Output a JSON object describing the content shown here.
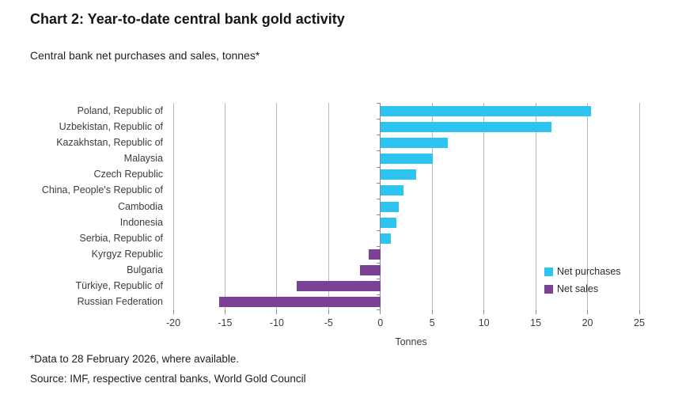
{
  "header": {
    "title": "Chart 2: Year-to-date central bank gold activity",
    "subtitle": "Central bank net purchases and sales, tonnes*"
  },
  "chart_data": {
    "type": "bar",
    "orientation": "horizontal",
    "title": "Chart 2: Year-to-date central bank gold activity",
    "subtitle": "Central bank net purchases and sales, tonnes*",
    "categories": [
      "Poland, Republic of",
      "Uzbekistan, Republic of",
      "Kazakhstan, Republic of",
      "Malaysia",
      "Czech Republic",
      "China, People's Republic of",
      "Cambodia",
      "Indonesia",
      "Serbia, Republic of",
      "Kyrgyz Republic",
      "Bulgaria",
      "Türkiye, Republic of",
      "Russian Federation"
    ],
    "values": [
      20.3,
      16.5,
      6.5,
      5.0,
      3.4,
      2.2,
      1.7,
      1.5,
      1.0,
      -1.1,
      -2.0,
      -8.1,
      -15.6
    ],
    "xlabel": "Tonnes",
    "ylabel": "",
    "xlim": [
      -20,
      25
    ],
    "xticks": [
      -20,
      -15,
      -10,
      -5,
      0,
      5,
      10,
      15,
      20,
      25
    ],
    "grid": true,
    "legend": {
      "position": "inside-right",
      "entries": [
        {
          "label": "Net purchases",
          "color": "#2EC4F1",
          "applies_to": "positive values"
        },
        {
          "label": "Net sales",
          "color": "#7A4195",
          "applies_to": "negative values"
        }
      ]
    }
  },
  "colors": {
    "net_purchases": "#2EC4F1",
    "net_sales": "#7A4195",
    "gridline": "#B8B8B8",
    "axis": "#8A8A8A",
    "background": "#FFFFFF"
  },
  "footer": {
    "note": "*Data to 28 February 2026, where available.",
    "source": "Source: IMF, respective central banks, World Gold Council"
  }
}
